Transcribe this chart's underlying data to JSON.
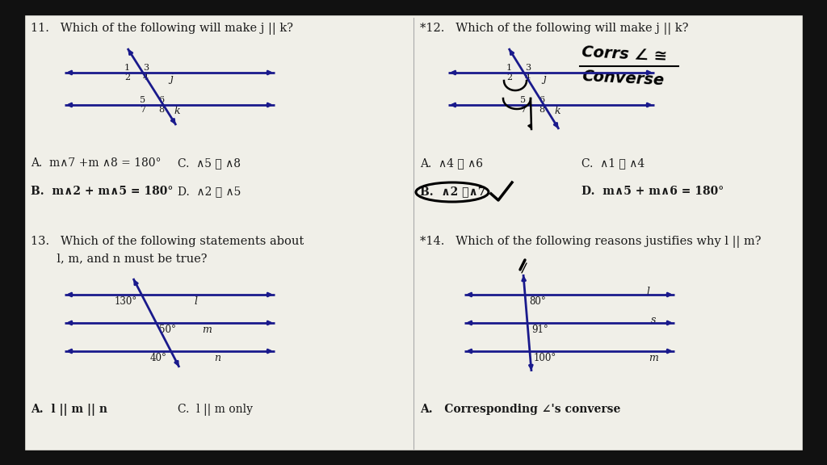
{
  "bg_color": "#f0efe8",
  "dark_bg": "#111111",
  "line_color": "#1a1a8c",
  "text_color": "#1a1a1a",
  "q11_title": "11.   Which of the following will make j || k?",
  "q12_title": "*12.   Which of the following will make j || k?",
  "q13_title_1": "13.   Which of the following statements about",
  "q13_title_2": "       l, m, and n must be true?",
  "q14_title": "*14.   Which of the following reasons justifies why l || m?",
  "q11_a": "A.  m∧7 +m ∧8 = 180°",
  "q11_b": "B.  m∧2 + m∧5 = 180°",
  "q11_c": "C.  ∧5 ≅ ∧8",
  "q11_d": "D.  ∧2 ≅ ∧5",
  "q12_a": "A.  ∧4 ≅ ∧6",
  "q12_b": "B.  ∧2 ≅∧7",
  "q12_c": "C.  ∧1 ≅ ∧4",
  "q12_d": "D.  m∧5 + m∧6 = 180°",
  "q13_a": "A.  l || m || n",
  "q13_c": "C.  l || m only",
  "q14_a": "A.   Corresponding ∠'s converse",
  "handwrite_line1": "Corrs ∠ ≅",
  "handwrite_line2": "Converse"
}
